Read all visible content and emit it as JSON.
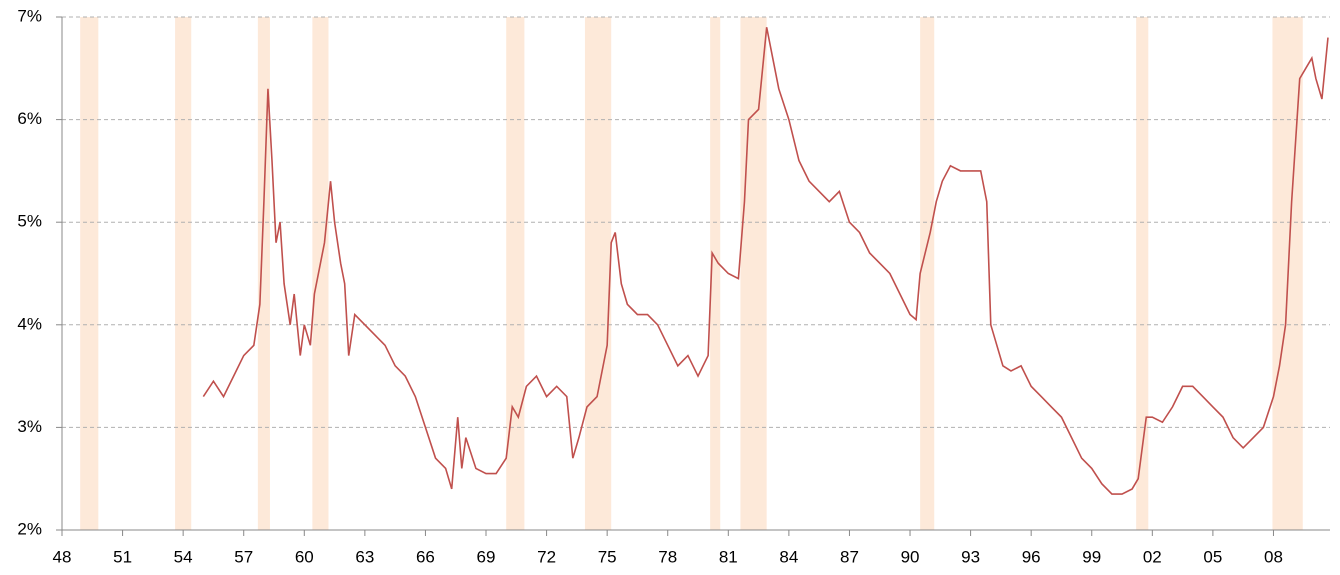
{
  "chart_data": {
    "type": "line",
    "x": [
      1955.0,
      1955.5,
      1956.0,
      1956.5,
      1957.0,
      1957.5,
      1957.8,
      1958.0,
      1958.2,
      1958.4,
      1958.6,
      1958.8,
      1959.0,
      1959.3,
      1959.5,
      1959.8,
      1960.0,
      1960.3,
      1960.5,
      1960.8,
      1961.0,
      1961.3,
      1961.5,
      1961.8,
      1962.0,
      1962.2,
      1962.5,
      1963.0,
      1963.5,
      1964.0,
      1964.5,
      1965.0,
      1965.5,
      1966.0,
      1966.5,
      1967.0,
      1967.3,
      1967.6,
      1967.8,
      1968.0,
      1968.5,
      1969.0,
      1969.5,
      1970.0,
      1970.3,
      1970.6,
      1971.0,
      1971.5,
      1972.0,
      1972.5,
      1973.0,
      1973.3,
      1973.6,
      1974.0,
      1974.5,
      1975.0,
      1975.2,
      1975.4,
      1975.7,
      1976.0,
      1976.5,
      1977.0,
      1977.5,
      1978.0,
      1978.5,
      1979.0,
      1979.5,
      1980.0,
      1980.2,
      1980.5,
      1981.0,
      1981.5,
      1981.8,
      1982.0,
      1982.5,
      1982.9,
      1983.2,
      1983.5,
      1984.0,
      1984.5,
      1985.0,
      1985.5,
      1986.0,
      1986.5,
      1987.0,
      1987.5,
      1988.0,
      1988.5,
      1989.0,
      1989.5,
      1990.0,
      1990.3,
      1990.5,
      1991.0,
      1991.3,
      1991.6,
      1992.0,
      1992.5,
      1993.0,
      1993.5,
      1993.8,
      1994.0,
      1994.3,
      1994.6,
      1995.0,
      1995.5,
      1996.0,
      1996.5,
      1997.0,
      1997.5,
      1998.0,
      1998.5,
      1999.0,
      1999.5,
      2000.0,
      2000.5,
      2001.0,
      2001.3,
      2001.7,
      2002.0,
      2002.5,
      2003.0,
      2003.5,
      2004.0,
      2004.5,
      2005.0,
      2005.5,
      2006.0,
      2006.5,
      2007.0,
      2007.5,
      2008.0,
      2008.3,
      2008.6,
      2008.9,
      2009.1,
      2009.3,
      2009.6,
      2009.9,
      2010.1,
      2010.4,
      2010.7
    ],
    "series": [
      {
        "color": "#c0504d",
        "values": [
          3.3,
          3.45,
          3.3,
          3.5,
          3.7,
          3.8,
          4.2,
          5.2,
          6.3,
          5.6,
          4.8,
          5.0,
          4.4,
          4.0,
          4.3,
          3.7,
          4.0,
          3.8,
          4.3,
          4.6,
          4.8,
          5.4,
          5.0,
          4.6,
          4.4,
          3.7,
          4.1,
          4.0,
          3.9,
          3.8,
          3.6,
          3.5,
          3.3,
          3.0,
          2.7,
          2.6,
          2.4,
          3.1,
          2.6,
          2.9,
          2.6,
          2.55,
          2.55,
          2.7,
          3.2,
          3.1,
          3.4,
          3.5,
          3.3,
          3.4,
          3.3,
          2.7,
          2.9,
          3.2,
          3.3,
          3.8,
          4.8,
          4.9,
          4.4,
          4.2,
          4.1,
          4.1,
          4.0,
          3.8,
          3.6,
          3.7,
          3.5,
          3.7,
          4.7,
          4.6,
          4.5,
          4.45,
          5.2,
          6.0,
          6.1,
          6.9,
          6.6,
          6.3,
          6.0,
          5.6,
          5.4,
          5.3,
          5.2,
          5.3,
          5.0,
          4.9,
          4.7,
          4.6,
          4.5,
          4.3,
          4.1,
          4.05,
          4.5,
          4.9,
          5.2,
          5.4,
          5.55,
          5.5,
          5.5,
          5.5,
          5.2,
          4.0,
          3.8,
          3.6,
          3.55,
          3.6,
          3.4,
          3.3,
          3.2,
          3.1,
          2.9,
          2.7,
          2.6,
          2.45,
          2.35,
          2.35,
          2.4,
          2.5,
          3.1,
          3.1,
          3.05,
          3.2,
          3.4,
          3.4,
          3.3,
          3.2,
          3.1,
          2.9,
          2.8,
          2.9,
          3.0,
          3.3,
          3.6,
          4.0,
          5.2,
          5.8,
          6.4,
          6.5,
          6.6,
          6.4,
          6.2,
          6.8
        ]
      }
    ],
    "recessions": [
      [
        1948.9,
        1949.8
      ],
      [
        1953.6,
        1954.4
      ],
      [
        1957.7,
        1958.3
      ],
      [
        1960.4,
        1961.2
      ],
      [
        1970.0,
        1970.9
      ],
      [
        1973.9,
        1975.2
      ],
      [
        1980.1,
        1980.6
      ],
      [
        1981.6,
        1982.9
      ],
      [
        1990.5,
        1991.2
      ],
      [
        2001.2,
        2001.8
      ],
      [
        2007.95,
        2009.45
      ]
    ],
    "recession_color": "#fde9d9",
    "xlim": [
      1948,
      2010.8
    ],
    "xticks": [
      {
        "value": 1948,
        "label": "48"
      },
      {
        "value": 1951,
        "label": "51"
      },
      {
        "value": 1954,
        "label": "54"
      },
      {
        "value": 1957,
        "label": "57"
      },
      {
        "value": 1960,
        "label": "60"
      },
      {
        "value": 1963,
        "label": "63"
      },
      {
        "value": 1966,
        "label": "66"
      },
      {
        "value": 1969,
        "label": "69"
      },
      {
        "value": 1972,
        "label": "72"
      },
      {
        "value": 1975,
        "label": "75"
      },
      {
        "value": 1978,
        "label": "78"
      },
      {
        "value": 1981,
        "label": "81"
      },
      {
        "value": 1984,
        "label": "84"
      },
      {
        "value": 1987,
        "label": "87"
      },
      {
        "value": 1990,
        "label": "90"
      },
      {
        "value": 1993,
        "label": "93"
      },
      {
        "value": 1996,
        "label": "96"
      },
      {
        "value": 1999,
        "label": "99"
      },
      {
        "value": 2002,
        "label": "02"
      },
      {
        "value": 2005,
        "label": "05"
      },
      {
        "value": 2008,
        "label": "08"
      }
    ],
    "ylim": [
      2,
      7
    ],
    "yticks": [
      {
        "value": 2,
        "label": "2%"
      },
      {
        "value": 3,
        "label": "3%"
      },
      {
        "value": 4,
        "label": "4%"
      },
      {
        "value": 5,
        "label": "5%"
      },
      {
        "value": 6,
        "label": "6%"
      },
      {
        "value": 7,
        "label": "7%"
      }
    ],
    "grid": true
  }
}
